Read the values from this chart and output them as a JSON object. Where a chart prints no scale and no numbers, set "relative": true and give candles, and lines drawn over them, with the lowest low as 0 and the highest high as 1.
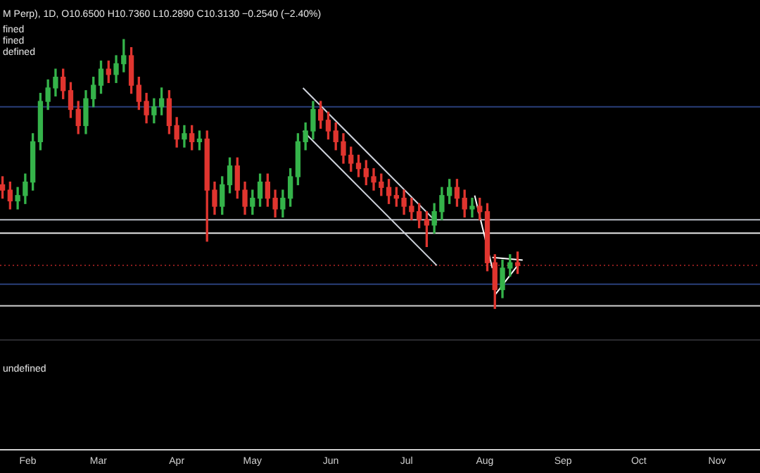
{
  "chart_data": {
    "type": "candlestick",
    "relative": true,
    "title": "M Perp), 1D, O10.6500 H10.7360 L10.2890 C10.3130 −0.2540 (−2.40%)",
    "annotations": [
      "fined",
      "fined",
      "defined",
      "undefined"
    ],
    "x": [
      "--01-22",
      "--01-25",
      "--01-28",
      "--01-31",
      "--02-03",
      "--02-06",
      "--02-09",
      "--02-12",
      "--02-15",
      "--02-18",
      "--02-21",
      "--02-24",
      "--02-27",
      "--03-02",
      "--03-05",
      "--03-08",
      "--03-11",
      "--03-14",
      "--03-17",
      "--03-20",
      "--03-23",
      "--03-26",
      "--03-29",
      "--04-01",
      "--04-04",
      "--04-07",
      "--04-10",
      "--04-13",
      "--04-16",
      "--04-19",
      "--04-22",
      "--04-25",
      "--04-28",
      "--05-01",
      "--05-04",
      "--05-07",
      "--05-10",
      "--05-13",
      "--05-16",
      "--05-19",
      "--05-22",
      "--05-25",
      "--05-28",
      "--05-31",
      "--06-03",
      "--06-06",
      "--06-09",
      "--06-12",
      "--06-15",
      "--06-18",
      "--06-21",
      "--06-24",
      "--06-27",
      "--06-30",
      "--07-03",
      "--07-06",
      "--07-09",
      "--07-12",
      "--07-15",
      "--07-18",
      "--07-21",
      "--07-24",
      "--07-27",
      "--07-30",
      "--08-02",
      "--08-05",
      "--08-08",
      "--08-11",
      "--08-14"
    ],
    "ohlc": [
      [
        0.46,
        0.49,
        0.41,
        0.44
      ],
      [
        0.44,
        0.47,
        0.37,
        0.4
      ],
      [
        0.4,
        0.45,
        0.37,
        0.42
      ],
      [
        0.42,
        0.5,
        0.39,
        0.47
      ],
      [
        0.47,
        0.65,
        0.44,
        0.62
      ],
      [
        0.62,
        0.8,
        0.59,
        0.77
      ],
      [
        0.77,
        0.85,
        0.74,
        0.82
      ],
      [
        0.82,
        0.89,
        0.79,
        0.86
      ],
      [
        0.86,
        0.89,
        0.78,
        0.81
      ],
      [
        0.81,
        0.84,
        0.71,
        0.74
      ],
      [
        0.74,
        0.77,
        0.65,
        0.68
      ],
      [
        0.68,
        0.81,
        0.65,
        0.78
      ],
      [
        0.78,
        0.86,
        0.75,
        0.83
      ],
      [
        0.83,
        0.92,
        0.8,
        0.89
      ],
      [
        0.89,
        0.92,
        0.84,
        0.87
      ],
      [
        0.87,
        0.94,
        0.84,
        0.91
      ],
      [
        0.91,
        1.0,
        0.88,
        0.94
      ],
      [
        0.94,
        0.97,
        0.8,
        0.83
      ],
      [
        0.83,
        0.86,
        0.74,
        0.77
      ],
      [
        0.77,
        0.8,
        0.69,
        0.72
      ],
      [
        0.72,
        0.78,
        0.69,
        0.75
      ],
      [
        0.75,
        0.82,
        0.72,
        0.78
      ],
      [
        0.78,
        0.81,
        0.65,
        0.68
      ],
      [
        0.68,
        0.71,
        0.6,
        0.63
      ],
      [
        0.63,
        0.68,
        0.6,
        0.65
      ],
      [
        0.65,
        0.68,
        0.59,
        0.62
      ],
      [
        0.62,
        0.66,
        0.59,
        0.63
      ],
      [
        0.63,
        0.66,
        0.25,
        0.44
      ],
      [
        0.44,
        0.47,
        0.35,
        0.38
      ],
      [
        0.38,
        0.49,
        0.35,
        0.46
      ],
      [
        0.46,
        0.56,
        0.43,
        0.53
      ],
      [
        0.53,
        0.56,
        0.41,
        0.44
      ],
      [
        0.44,
        0.47,
        0.35,
        0.38
      ],
      [
        0.38,
        0.44,
        0.35,
        0.41
      ],
      [
        0.41,
        0.5,
        0.38,
        0.47
      ],
      [
        0.47,
        0.5,
        0.38,
        0.41
      ],
      [
        0.41,
        0.44,
        0.34,
        0.37
      ],
      [
        0.37,
        0.44,
        0.34,
        0.41
      ],
      [
        0.41,
        0.52,
        0.38,
        0.49
      ],
      [
        0.49,
        0.65,
        0.46,
        0.62
      ],
      [
        0.62,
        0.69,
        0.59,
        0.66
      ],
      [
        0.66,
        0.77,
        0.63,
        0.74
      ],
      [
        0.74,
        0.77,
        0.67,
        0.7
      ],
      [
        0.7,
        0.73,
        0.63,
        0.66
      ],
      [
        0.66,
        0.69,
        0.59,
        0.62
      ],
      [
        0.62,
        0.65,
        0.54,
        0.57
      ],
      [
        0.57,
        0.6,
        0.51,
        0.54
      ],
      [
        0.54,
        0.57,
        0.49,
        0.52
      ],
      [
        0.52,
        0.55,
        0.46,
        0.49
      ],
      [
        0.49,
        0.52,
        0.44,
        0.47
      ],
      [
        0.47,
        0.5,
        0.42,
        0.45
      ],
      [
        0.45,
        0.48,
        0.39,
        0.42
      ],
      [
        0.42,
        0.45,
        0.38,
        0.41
      ],
      [
        0.41,
        0.44,
        0.35,
        0.38
      ],
      [
        0.38,
        0.41,
        0.33,
        0.36
      ],
      [
        0.36,
        0.39,
        0.3,
        0.33
      ],
      [
        0.33,
        0.36,
        0.23,
        0.31
      ],
      [
        0.31,
        0.39,
        0.28,
        0.36
      ],
      [
        0.36,
        0.45,
        0.33,
        0.42
      ],
      [
        0.42,
        0.48,
        0.39,
        0.45
      ],
      [
        0.45,
        0.48,
        0.38,
        0.41
      ],
      [
        0.41,
        0.44,
        0.34,
        0.37
      ],
      [
        0.37,
        0.41,
        0.34,
        0.38
      ],
      [
        0.38,
        0.41,
        0.33,
        0.36
      ],
      [
        0.36,
        0.39,
        0.14,
        0.17
      ],
      [
        0.17,
        0.2,
        0,
        0.07
      ],
      [
        0.07,
        0.18,
        0.04,
        0.15
      ],
      [
        0.15,
        0.2,
        0.12,
        0.17
      ],
      [
        0.17,
        0.21,
        0.13,
        0.16
      ]
    ],
    "series": [
      {
        "type": "line",
        "color": "#cfd3dc",
        "x": [
          "--05-21",
          "--07-13"
        ],
        "values": [
          0.82,
          0.32
        ]
      },
      {
        "type": "line",
        "color": "#cfd3dc",
        "x": [
          "--05-21",
          "--07-13"
        ],
        "values": [
          0.66,
          0.16
        ]
      },
      {
        "type": "line",
        "color": "#ffffff",
        "x": [
          "--07-28",
          "--08-04"
        ],
        "values": [
          0.42,
          0.15
        ]
      },
      {
        "type": "line",
        "color": "#ffffff",
        "x": [
          "--08-04",
          "--08-16"
        ],
        "values": [
          0.19,
          0.18
        ]
      },
      {
        "type": "line",
        "color": "#ffffff",
        "x": [
          "--08-05",
          "--08-14"
        ],
        "values": [
          0.05,
          0.16
        ]
      }
    ],
    "ref_lines": [
      {
        "axis": "y",
        "value": 0.75,
        "color": "#2a3f7a"
      },
      {
        "axis": "y",
        "value": 0.33,
        "color": "#b8bcc4"
      },
      {
        "axis": "y",
        "value": 0.28,
        "color": "#e8e8e8"
      },
      {
        "axis": "y",
        "value": 0.16,
        "color": "#8a1c1c",
        "line_style": "dotted"
      },
      {
        "axis": "y",
        "value": 0.09,
        "color": "#2a3f7a"
      },
      {
        "axis": "y",
        "value": 0.01,
        "color": "#d0d0d0"
      }
    ],
    "xlim": [
      "--01-21",
      "--11-18"
    ],
    "xticks": [
      {
        "value": "--02-01",
        "label": "Feb"
      },
      {
        "value": "--03-01",
        "label": "Mar"
      },
      {
        "value": "--04-01",
        "label": "Apr"
      },
      {
        "value": "--05-01",
        "label": "May"
      },
      {
        "value": "--06-01",
        "label": "Jun"
      },
      {
        "value": "--07-01",
        "label": "Jul"
      },
      {
        "value": "--08-01",
        "label": "Aug"
      },
      {
        "value": "--09-01",
        "label": "Sep"
      },
      {
        "value": "--10-01",
        "label": "Oct"
      },
      {
        "value": "--11-01",
        "label": "Nov"
      }
    ],
    "grid": false,
    "legend": false
  }
}
